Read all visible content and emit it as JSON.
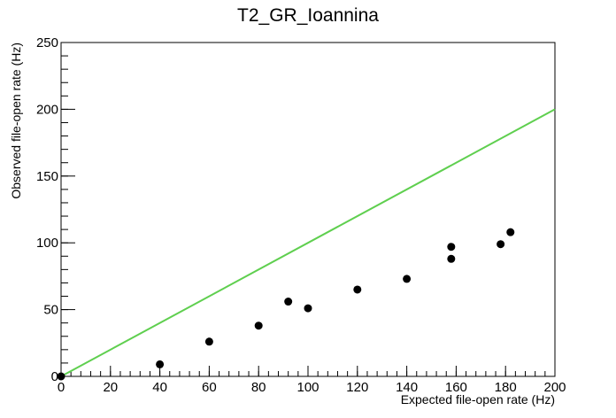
{
  "chart_data": {
    "type": "scatter",
    "title": "T2_GR_Ioannina",
    "xlabel": "Expected file-open rate (Hz)",
    "ylabel": "Observed file-open rate (Hz)",
    "xlim": [
      0,
      200
    ],
    "ylim": [
      0,
      250
    ],
    "xticks": [
      0,
      20,
      40,
      60,
      80,
      100,
      120,
      140,
      160,
      180,
      200
    ],
    "yticks": [
      0,
      50,
      100,
      150,
      200,
      250
    ],
    "grid": false,
    "legend": "none",
    "points": [
      {
        "x": 0,
        "y": 0
      },
      {
        "x": 40,
        "y": 9
      },
      {
        "x": 60,
        "y": 26
      },
      {
        "x": 80,
        "y": 38
      },
      {
        "x": 92,
        "y": 56
      },
      {
        "x": 100,
        "y": 51
      },
      {
        "x": 120,
        "y": 65
      },
      {
        "x": 140,
        "y": 73
      },
      {
        "x": 158,
        "y": 97
      },
      {
        "x": 158,
        "y": 88
      },
      {
        "x": 178,
        "y": 99
      },
      {
        "x": 182,
        "y": 108
      }
    ],
    "reference_line": {
      "x": [
        0,
        200
      ],
      "y": [
        0,
        200
      ]
    },
    "colors": {
      "points": "#000000",
      "reference_line": "#5fcf4f",
      "axes": "#000000"
    }
  }
}
